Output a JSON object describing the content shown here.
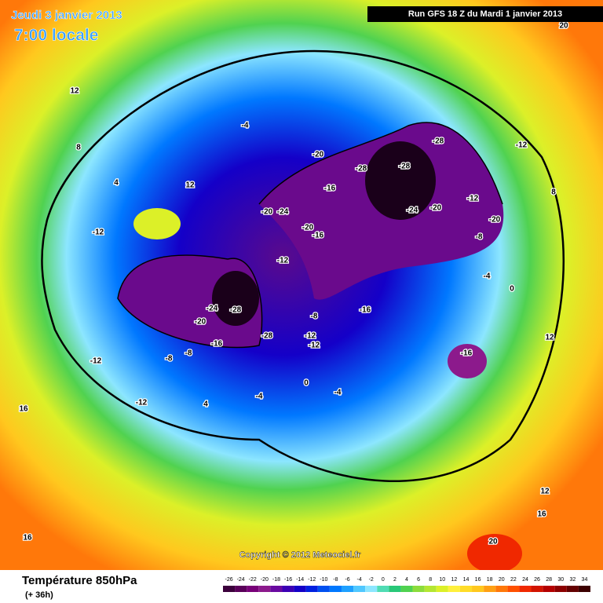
{
  "header": {
    "date": "Jeudi 3 janvier 2013",
    "time": "7:00 locale",
    "run": "Run GFS 18 Z du Mardi 1 janvier 2013"
  },
  "copyright": "Copyright © 2012 Meteociel.fr",
  "footer": {
    "title": "Température 850hPa",
    "lead": "(+ 36h)"
  },
  "scale": {
    "ticks": [
      -26,
      -24,
      -22,
      -20,
      -18,
      -16,
      -14,
      -12,
      -10,
      -8,
      -6,
      -4,
      -2,
      0,
      2,
      4,
      6,
      8,
      10,
      12,
      14,
      16,
      18,
      20,
      22,
      24,
      26,
      28,
      30,
      32,
      34
    ],
    "colors": [
      "#3c003c",
      "#5a005a",
      "#780078",
      "#8c1a8c",
      "#6a0aa0",
      "#3c00b4",
      "#1400c8",
      "#0020e0",
      "#0050f0",
      "#0078ff",
      "#1ea0ff",
      "#50c8ff",
      "#8ce6ff",
      "#50dcb4",
      "#28c878",
      "#50d250",
      "#8cdc3c",
      "#b4e632",
      "#dcf028",
      "#fff03c",
      "#ffdc28",
      "#ffc81e",
      "#ffa014",
      "#ff780a",
      "#ff5000",
      "#f02800",
      "#d21400",
      "#b40000",
      "#8c0000",
      "#640000",
      "#3c0000"
    ]
  },
  "contour_labels": [
    -28,
    -28,
    -28,
    -28,
    -28,
    -24,
    -24,
    -24,
    -20,
    -20,
    -20,
    -20,
    -20,
    -20,
    -16,
    -16,
    -16,
    -16,
    -16,
    -12,
    -12,
    -12,
    -12,
    -12,
    -12,
    -12,
    -12,
    -8,
    -8,
    -8,
    -8,
    -4,
    -4,
    -4,
    -4,
    0,
    0,
    4,
    4,
    8,
    8,
    12,
    12,
    12,
    12,
    16,
    16,
    16,
    20,
    20
  ]
}
